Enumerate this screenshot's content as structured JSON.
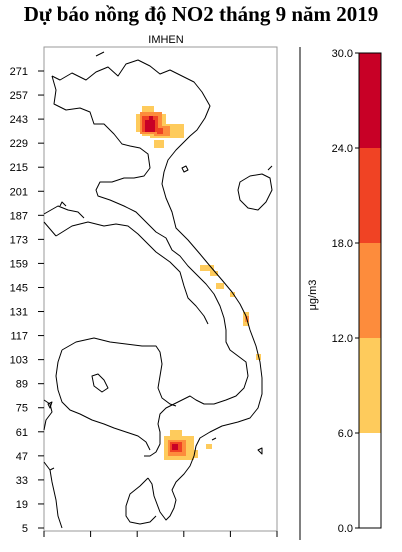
{
  "title": "Dự báo nồng độ NO2 tháng 9 năm 2019",
  "source_label": "IMHEN",
  "unit_label": "μg/m3",
  "map": {
    "y_ticks": [
      "271",
      "257",
      "243",
      "229",
      "215",
      "201",
      "187",
      "173",
      "159",
      "145",
      "131",
      "117",
      "103",
      "89",
      "75",
      "61",
      "47",
      "33",
      "19",
      "5"
    ],
    "x_tick_count": 6
  },
  "colorbar": {
    "ticks": [
      "30.0",
      "24.0",
      "18.0",
      "12.0",
      "6.0",
      "0.0"
    ],
    "bands": [
      {
        "from": 0,
        "to": 6,
        "color": "#ffffff"
      },
      {
        "from": 6,
        "to": 12,
        "color": "#fecb5c"
      },
      {
        "from": 12,
        "to": 18,
        "color": "#fd8c3c"
      },
      {
        "from": 18,
        "to": 24,
        "color": "#f04324"
      },
      {
        "from": 24,
        "to": 30,
        "color": "#c80026"
      }
    ]
  },
  "colors": {
    "low": "#fecb5c",
    "mid": "#fd8c3c",
    "high": "#f04324",
    "max": "#c80026"
  }
}
